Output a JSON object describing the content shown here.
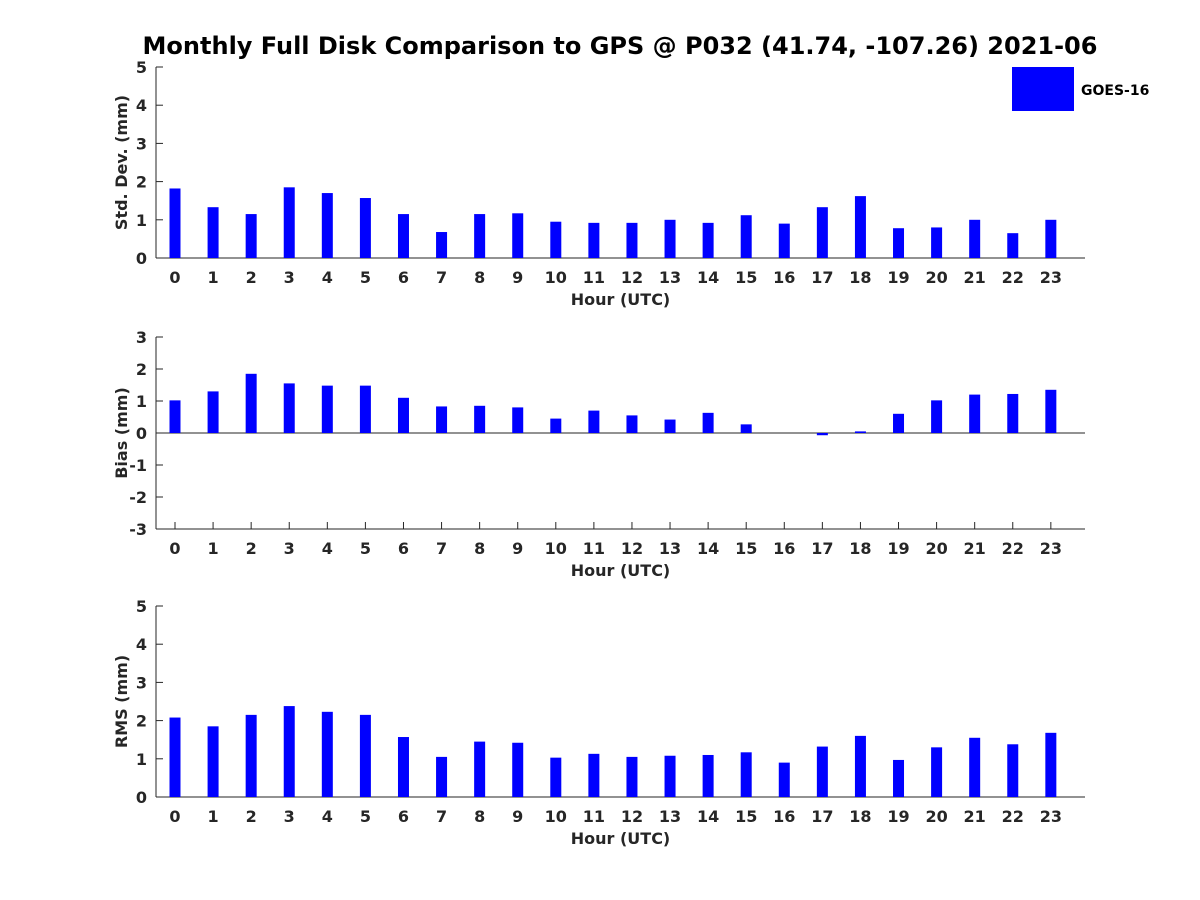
{
  "figure_title": "Monthly Full Disk Comparison to GPS @ P032 (41.74, -107.26) 2021-06",
  "legend": {
    "label": "GOES-16",
    "color": "#0000ff"
  },
  "chart_data": [
    {
      "type": "bar",
      "xlabel": "Hour (UTC)",
      "ylabel": "Std. Dev. (mm)",
      "ylim": [
        0,
        5
      ],
      "yticks": [
        0,
        1,
        2,
        3,
        4,
        5
      ],
      "categories": [
        "0",
        "1",
        "2",
        "3",
        "4",
        "5",
        "6",
        "7",
        "8",
        "9",
        "10",
        "11",
        "12",
        "13",
        "14",
        "15",
        "16",
        "17",
        "18",
        "19",
        "20",
        "21",
        "22",
        "23"
      ],
      "series": [
        {
          "name": "GOES-16",
          "color": "#0000ff",
          "values": [
            1.82,
            1.33,
            1.15,
            1.85,
            1.7,
            1.57,
            1.15,
            0.68,
            1.15,
            1.17,
            0.95,
            0.92,
            0.92,
            1.0,
            0.92,
            1.12,
            0.9,
            1.33,
            1.62,
            0.78,
            0.8,
            1.0,
            0.65,
            1.0
          ]
        }
      ]
    },
    {
      "type": "bar",
      "xlabel": "Hour (UTC)",
      "ylabel": "Bias (mm)",
      "ylim": [
        -3,
        3
      ],
      "yticks": [
        -3,
        -2,
        -1,
        0,
        1,
        2,
        3
      ],
      "zero_line": true,
      "categories": [
        "0",
        "1",
        "2",
        "3",
        "4",
        "5",
        "6",
        "7",
        "8",
        "9",
        "10",
        "11",
        "12",
        "13",
        "14",
        "15",
        "16",
        "17",
        "18",
        "19",
        "20",
        "21",
        "22",
        "23"
      ],
      "series": [
        {
          "name": "GOES-16",
          "color": "#0000ff",
          "values": [
            1.02,
            1.3,
            1.85,
            1.55,
            1.48,
            1.48,
            1.1,
            0.83,
            0.85,
            0.8,
            0.45,
            0.7,
            0.55,
            0.42,
            0.63,
            0.27,
            0.0,
            -0.07,
            0.05,
            0.6,
            1.02,
            1.2,
            1.22,
            1.35
          ]
        }
      ]
    },
    {
      "type": "bar",
      "xlabel": "Hour (UTC)",
      "ylabel": "RMS (mm)",
      "ylim": [
        0,
        5
      ],
      "yticks": [
        0,
        1,
        2,
        3,
        4,
        5
      ],
      "categories": [
        "0",
        "1",
        "2",
        "3",
        "4",
        "5",
        "6",
        "7",
        "8",
        "9",
        "10",
        "11",
        "12",
        "13",
        "14",
        "15",
        "16",
        "17",
        "18",
        "19",
        "20",
        "21",
        "22",
        "23"
      ],
      "series": [
        {
          "name": "GOES-16",
          "color": "#0000ff",
          "values": [
            2.08,
            1.85,
            2.15,
            2.38,
            2.23,
            2.15,
            1.57,
            1.05,
            1.45,
            1.42,
            1.03,
            1.13,
            1.05,
            1.08,
            1.1,
            1.17,
            0.9,
            1.32,
            1.6,
            0.97,
            1.3,
            1.55,
            1.38,
            1.68
          ]
        }
      ]
    }
  ]
}
